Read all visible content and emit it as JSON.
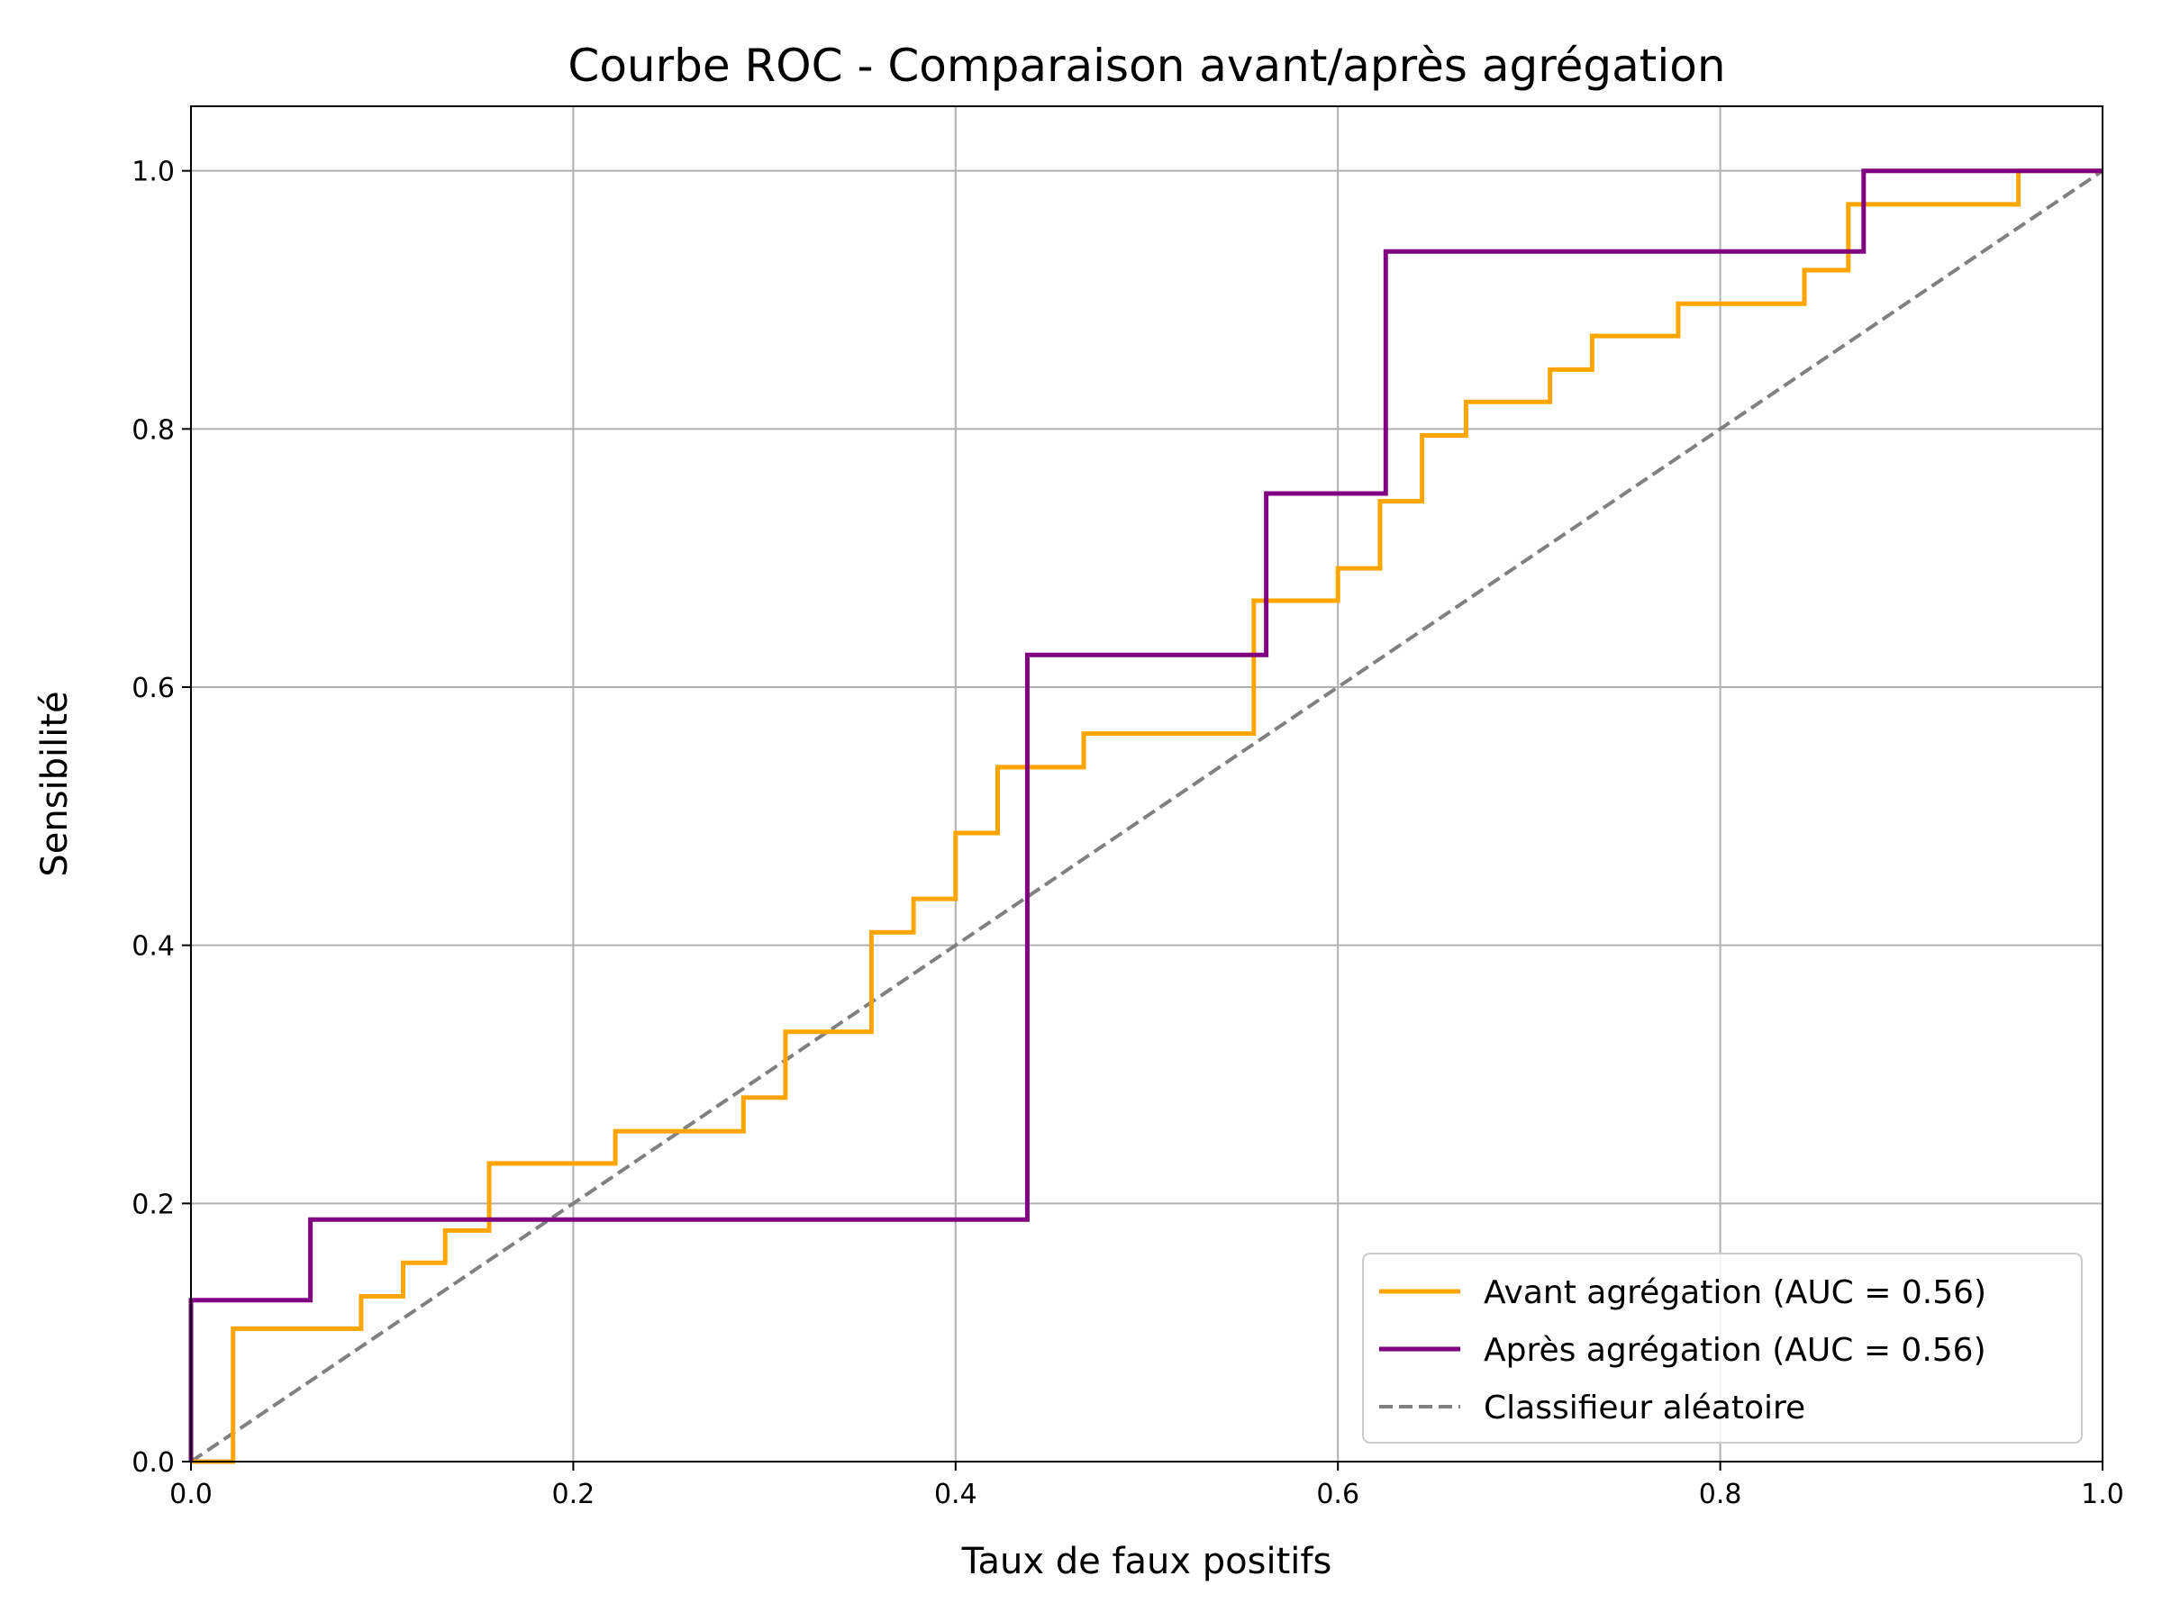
{
  "chart_data": {
    "type": "line",
    "title": "Courbe ROC - Comparaison avant/après agrégation",
    "xlabel": "Taux de faux positifs",
    "ylabel": "Sensibilité",
    "xlim": [
      0.0,
      1.0
    ],
    "ylim": [
      0.0,
      1.05
    ],
    "xticks": [
      "0.0",
      "0.2",
      "0.4",
      "0.6",
      "0.8",
      "1.0"
    ],
    "yticks": [
      "0.0",
      "0.2",
      "0.4",
      "0.6",
      "0.8",
      "1.0"
    ],
    "grid": true,
    "legend_position": "lower-right",
    "series": [
      {
        "name": "Avant agrégation (AUC = 0.56)",
        "color": "#FFA500",
        "style": "solid",
        "x": [
          0.0,
          0.022,
          0.022,
          0.089,
          0.089,
          0.111,
          0.111,
          0.133,
          0.133,
          0.156,
          0.156,
          0.222,
          0.222,
          0.289,
          0.289,
          0.311,
          0.311,
          0.356,
          0.356,
          0.378,
          0.378,
          0.4,
          0.4,
          0.422,
          0.422,
          0.467,
          0.467,
          0.556,
          0.556,
          0.6,
          0.6,
          0.622,
          0.622,
          0.644,
          0.644,
          0.667,
          0.667,
          0.711,
          0.711,
          0.733,
          0.733,
          0.778,
          0.778,
          0.844,
          0.844,
          0.867,
          0.867,
          0.956,
          0.956,
          1.0
        ],
        "y": [
          0.0,
          0.0,
          0.103,
          0.103,
          0.128,
          0.128,
          0.154,
          0.154,
          0.179,
          0.179,
          0.231,
          0.231,
          0.256,
          0.256,
          0.282,
          0.282,
          0.333,
          0.333,
          0.41,
          0.41,
          0.436,
          0.436,
          0.487,
          0.487,
          0.538,
          0.538,
          0.564,
          0.564,
          0.667,
          0.667,
          0.692,
          0.692,
          0.744,
          0.744,
          0.795,
          0.795,
          0.821,
          0.821,
          0.846,
          0.846,
          0.872,
          0.872,
          0.897,
          0.897,
          0.923,
          0.923,
          0.974,
          0.974,
          1.0,
          1.0
        ]
      },
      {
        "name": "Après agrégation (AUC = 0.56)",
        "color": "#800080",
        "style": "solid",
        "x": [
          0.0,
          0.0,
          0.0625,
          0.0625,
          0.4375,
          0.4375,
          0.5625,
          0.5625,
          0.625,
          0.625,
          0.875,
          0.875,
          1.0
        ],
        "y": [
          0.0,
          0.125,
          0.125,
          0.1875,
          0.1875,
          0.625,
          0.625,
          0.75,
          0.75,
          0.9375,
          0.9375,
          1.0,
          1.0
        ]
      },
      {
        "name": "Classifieur aléatoire",
        "color": "#808080",
        "style": "dashed",
        "x": [
          0.0,
          1.0
        ],
        "y": [
          0.0,
          1.0
        ]
      }
    ]
  }
}
